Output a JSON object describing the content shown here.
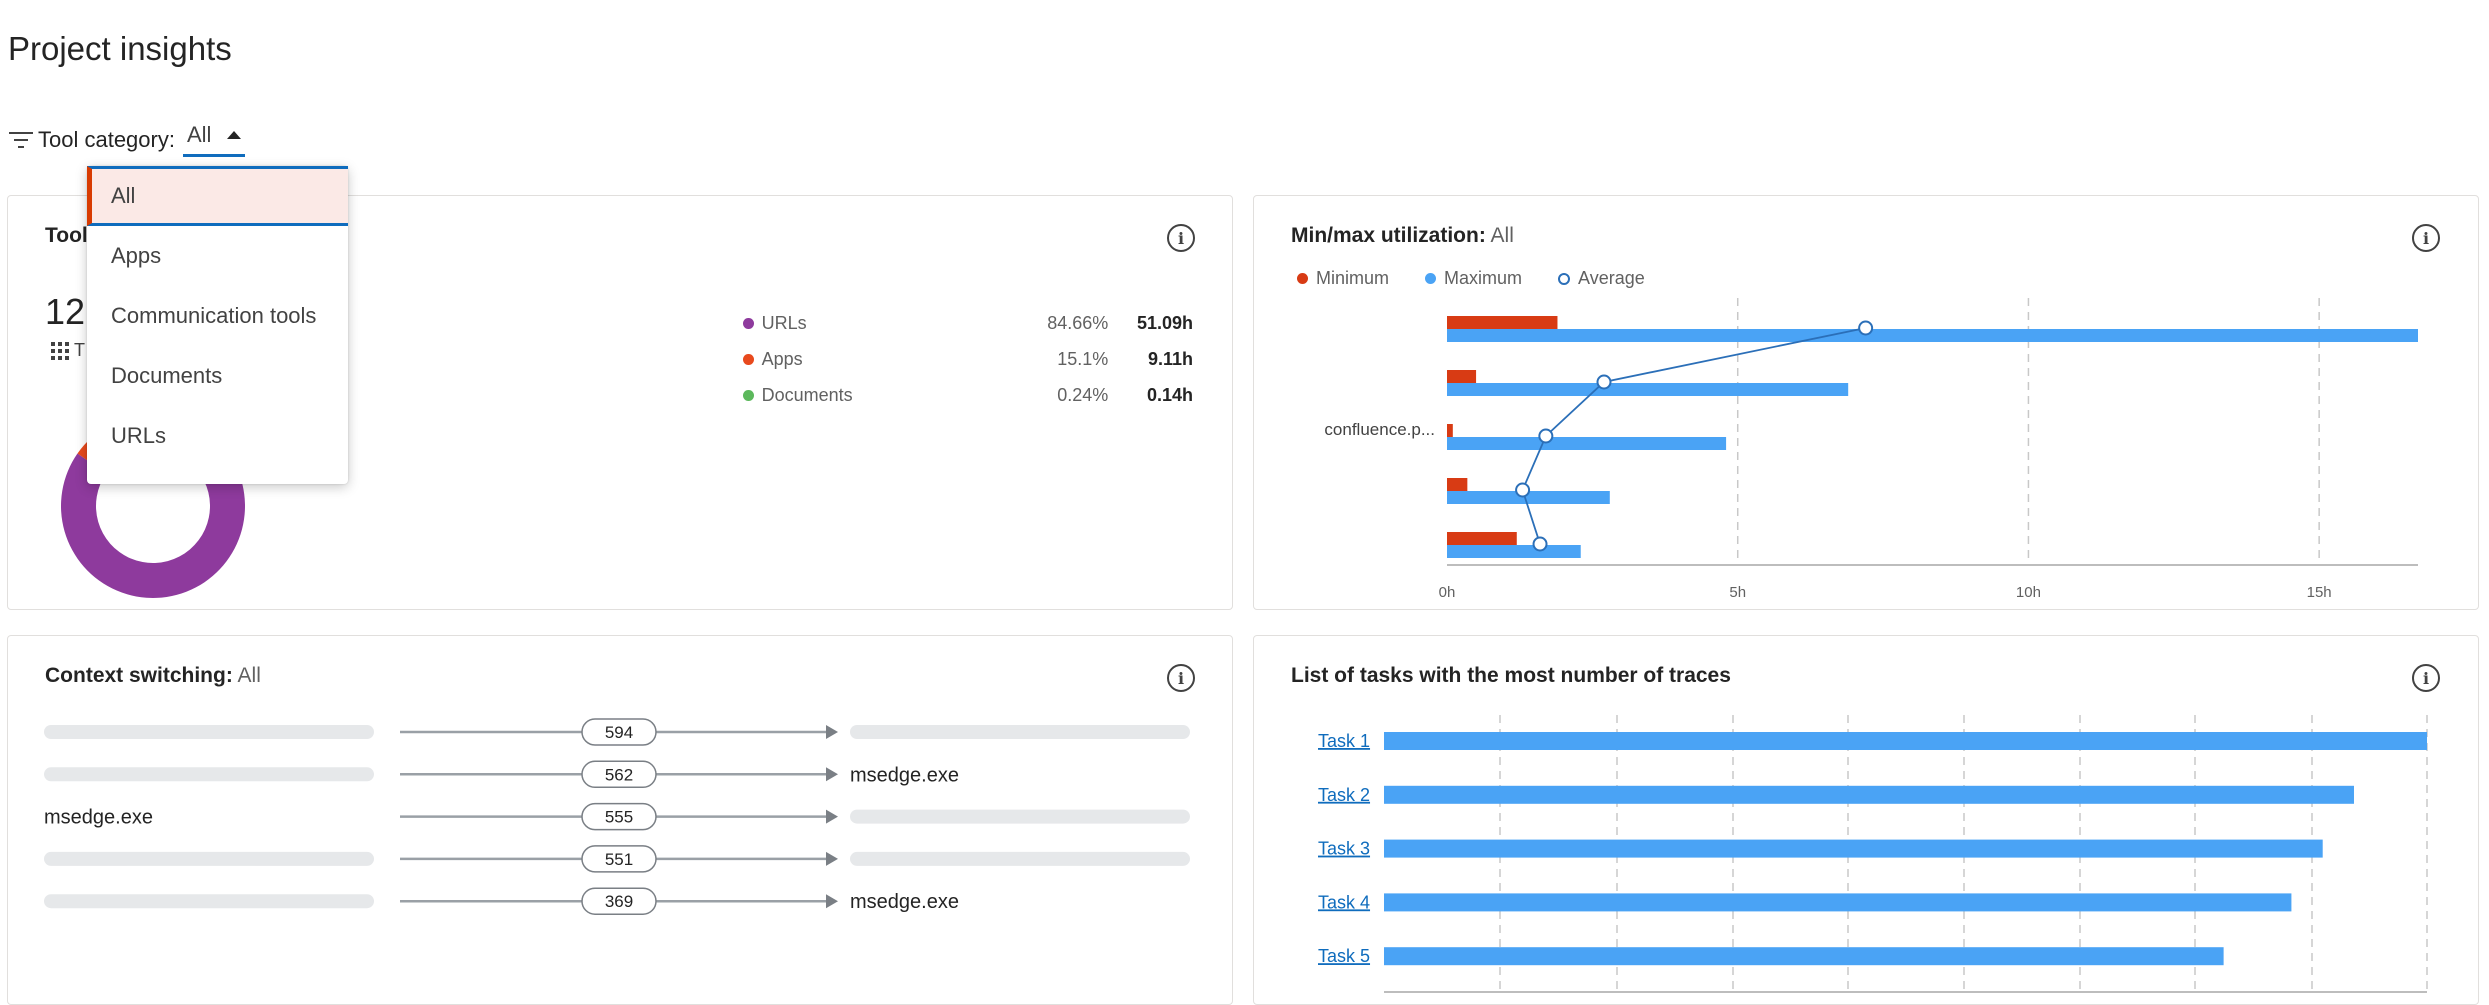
{
  "page_title": "Project insights",
  "filter": {
    "label": "Tool category:",
    "value": "All",
    "options": [
      {
        "label": "All",
        "selected": true
      },
      {
        "label": "Apps",
        "selected": false
      },
      {
        "label": "Communication tools",
        "selected": false
      },
      {
        "label": "Documents",
        "selected": false
      },
      {
        "label": "URLs",
        "selected": false
      }
    ]
  },
  "tools_card": {
    "title_fragment": "Tool",
    "total_fragment": "12",
    "subtitle_fragment": "T",
    "legend": [
      {
        "label": "URLs",
        "percent": "84.66%",
        "hours": "51.09h",
        "color": "#8e3a9d"
      },
      {
        "label": "Apps",
        "percent": "15.1%",
        "hours": "9.11h",
        "color": "#e8491d"
      },
      {
        "label": "Documents",
        "percent": "0.24%",
        "hours": "0.14h",
        "color": "#5cb85c"
      }
    ]
  },
  "minmax_card": {
    "title": "Min/max utilization:",
    "title_value": "All",
    "legend": [
      {
        "label": "Minimum",
        "color": "#d83b14"
      },
      {
        "label": "Maximum",
        "color": "#4aa3f5"
      },
      {
        "label": "Average",
        "color": "#2b6fb8"
      }
    ],
    "rows": [
      {
        "label": "",
        "blurred": true
      },
      {
        "label": "",
        "blurred": true
      },
      {
        "label": "confluence.p...",
        "blurred": false
      },
      {
        "label": "",
        "blurred": true
      },
      {
        "label": "",
        "blurred": true
      }
    ]
  },
  "context_card": {
    "title": "Context switching:",
    "title_value": "All",
    "rows": [
      {
        "from": "",
        "from_blurred": true,
        "count": "594",
        "to": "",
        "to_blurred": true
      },
      {
        "from": "",
        "from_blurred": true,
        "count": "562",
        "to": "msedge.exe",
        "to_blurred": false
      },
      {
        "from": "msedge.exe",
        "from_blurred": false,
        "count": "555",
        "to": "",
        "to_blurred": true
      },
      {
        "from": "",
        "from_blurred": true,
        "count": "551",
        "to": "",
        "to_blurred": true
      },
      {
        "from": "",
        "from_blurred": true,
        "count": "369",
        "to": "msedge.exe",
        "to_blurred": false
      }
    ]
  },
  "tasks_card": {
    "title": "List of tasks with the most number of traces",
    "tasks": [
      "Task 1",
      "Task 2",
      "Task 3",
      "Task 4",
      "Task 5"
    ]
  },
  "colors": {
    "accent_blue": "#0f6cbd",
    "minimum": "#d83b14",
    "maximum": "#4aa3f5",
    "urls_purple": "#8e3a9d",
    "apps_orange": "#e8491d",
    "documents_green": "#5cb85c"
  },
  "chart_data": [
    {
      "type": "pie",
      "labels": [
        "URLs",
        "Apps",
        "Documents"
      ],
      "values": [
        51.09,
        9.11,
        0.14
      ],
      "percent": [
        84.66,
        15.1,
        0.24
      ]
    },
    {
      "type": "bar",
      "title": "Min/max utilization: All",
      "categories": [
        "",
        "",
        "confluence.p...",
        "",
        ""
      ],
      "series": [
        {
          "name": "Minimum",
          "values": [
            1.9,
            0.5,
            0.1,
            0.35,
            1.2
          ]
        },
        {
          "name": "Maximum",
          "values": [
            16.7,
            6.9,
            4.8,
            2.8,
            2.3
          ]
        },
        {
          "name": "Average",
          "values": [
            7.2,
            2.7,
            1.7,
            1.3,
            1.6
          ]
        }
      ],
      "x_ticks": [
        "0h",
        "5h",
        "10h",
        "15h"
      ],
      "xlim": [
        0,
        16.7
      ]
    },
    {
      "type": "bar",
      "title": "List of tasks with the most number of traces",
      "categories": [
        "Task 1",
        "Task 2",
        "Task 3",
        "Task 4",
        "Task 5"
      ],
      "values": [
        100,
        93,
        90,
        87,
        80.5
      ]
    }
  ]
}
